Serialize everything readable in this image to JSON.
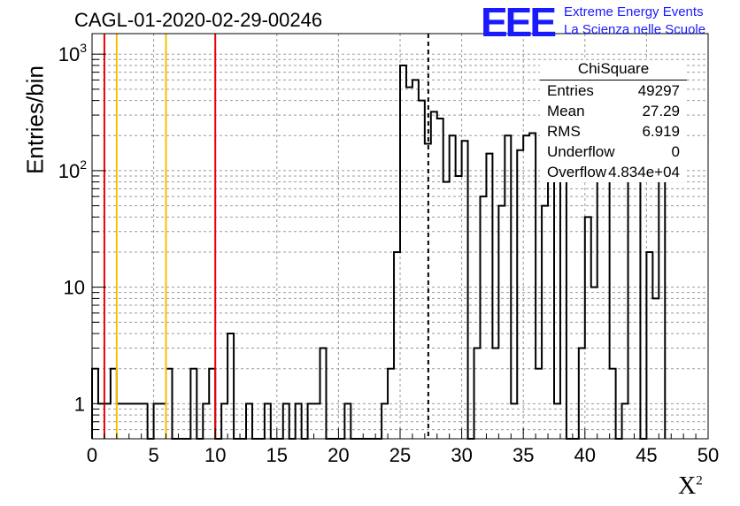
{
  "chart_data": {
    "type": "histogram",
    "title": "CAGL-01-2020-02-29-00246",
    "xlabel": "X",
    "xlabel_superscript": "2",
    "ylabel": "Entries/bin",
    "xlim": [
      0,
      50
    ],
    "ylim": [
      0.5,
      1500
    ],
    "yscale": "log",
    "grid": true,
    "bin_width": 0.5,
    "bin_counts": [
      2,
      1,
      1,
      2,
      1,
      1,
      1,
      1,
      1,
      0,
      1,
      1,
      2,
      0,
      0,
      0,
      2,
      0,
      1,
      2,
      0,
      1,
      4,
      0,
      0,
      1,
      0,
      0,
      1,
      0,
      0,
      1,
      0,
      1,
      0,
      1,
      1,
      3,
      0,
      0,
      0,
      1,
      0,
      0,
      0,
      0,
      0,
      1,
      2,
      20,
      800,
      520,
      600,
      400,
      170,
      320,
      280,
      80,
      200,
      90,
      180,
      0,
      3,
      60,
      140,
      3,
      50,
      200,
      1,
      150,
      200,
      210,
      2,
      50,
      200,
      1,
      210,
      0,
      0,
      3,
      40,
      10,
      150,
      200,
      2,
      0,
      1,
      100,
      160,
      0,
      20,
      8,
      100
    ],
    "x_ticks": [
      "0",
      "5",
      "10",
      "15",
      "20",
      "25",
      "30",
      "35",
      "40",
      "45",
      "50"
    ],
    "y_ticks": [
      {
        "value": 1,
        "label": "1"
      },
      {
        "value": 10,
        "label": "10"
      },
      {
        "value": 100,
        "label": "10",
        "exp": "2"
      },
      {
        "value": 1000,
        "label": "10",
        "exp": "3"
      }
    ],
    "vertical_lines": [
      {
        "x": 1,
        "color": "#e8000b"
      },
      {
        "x": 2,
        "color": "#f5c100"
      },
      {
        "x": 6,
        "color": "#f5c100"
      },
      {
        "x": 10,
        "color": "#e8000b"
      },
      {
        "x": 27.29,
        "color": "#000000",
        "style": "dashed"
      }
    ]
  },
  "stats_box": {
    "title": "ChiSquare",
    "rows": [
      {
        "key": "Entries",
        "value": "49297"
      },
      {
        "key": "Mean",
        "value": "27.29"
      },
      {
        "key": "RMS",
        "value": "6.919"
      },
      {
        "key": "Underflow",
        "value": "0"
      },
      {
        "key": "Overflow",
        "value": "4.834e+04"
      }
    ]
  },
  "logo": {
    "mark": "EEE",
    "line1": "Extreme Energy Events",
    "line2": "La Scienza nelle Scuole"
  }
}
